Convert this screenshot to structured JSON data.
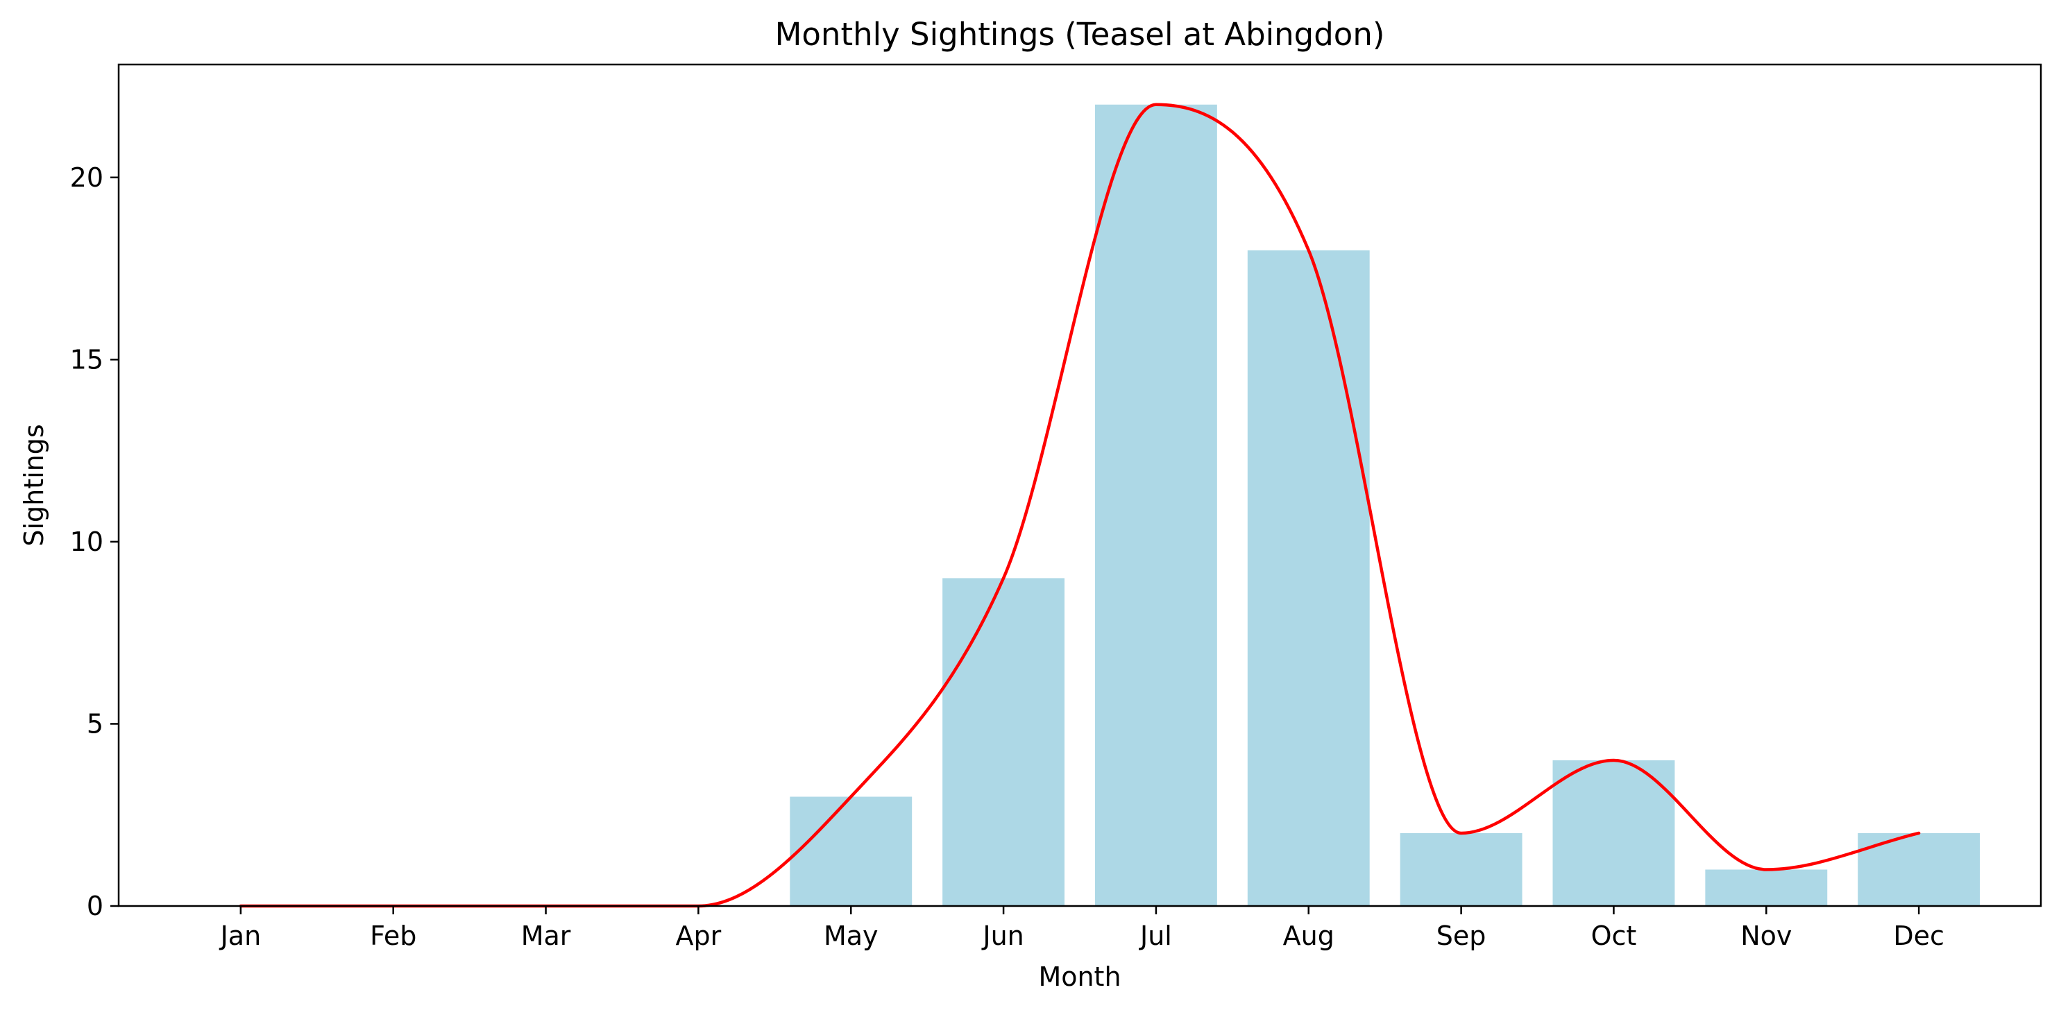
{
  "chart_data": {
    "type": "bar",
    "title": "Monthly Sightings (Teasel at Abingdon)",
    "xlabel": "Month",
    "ylabel": "Sightings",
    "categories": [
      "Jan",
      "Feb",
      "Mar",
      "Apr",
      "May",
      "Jun",
      "Jul",
      "Aug",
      "Sep",
      "Oct",
      "Nov",
      "Dec"
    ],
    "values": [
      0,
      0,
      0,
      0,
      3,
      9,
      22,
      18,
      2,
      4,
      1,
      2
    ],
    "ylim": [
      0,
      23.1
    ],
    "yticks": [
      0,
      5,
      10,
      15,
      20
    ],
    "grid": false,
    "legend": "none",
    "bar_color": "#add8e6",
    "overlay": {
      "type": "line",
      "smooth": true,
      "color": "#ff0000",
      "values": [
        0,
        0,
        0,
        0,
        3,
        9,
        22,
        18,
        2,
        4,
        1,
        2
      ]
    }
  }
}
